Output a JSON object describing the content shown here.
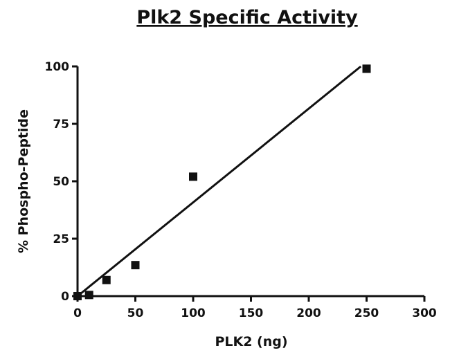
{
  "chart_data": {
    "type": "scatter",
    "title": "Plk2 Specific Activity",
    "xlabel": "PLK2 (ng)",
    "ylabel": "% Phospho-Peptide",
    "xlim": [
      0,
      300
    ],
    "ylim": [
      0,
      100
    ],
    "xticks": [
      0,
      50,
      100,
      150,
      200,
      250,
      300
    ],
    "yticks": [
      0,
      25,
      50,
      75,
      100
    ],
    "grid": false,
    "legend": "none",
    "series": [
      {
        "marker": "square",
        "x": [
          0,
          10,
          25,
          50,
          100,
          250
        ],
        "y": [
          0,
          0.5,
          7,
          13.5,
          52,
          99
        ]
      }
    ],
    "fit_line": {
      "x": [
        0,
        245
      ],
      "y": [
        -2,
        100
      ]
    },
    "colors": {
      "ink": "#111111",
      "background": "#ffffff"
    }
  }
}
